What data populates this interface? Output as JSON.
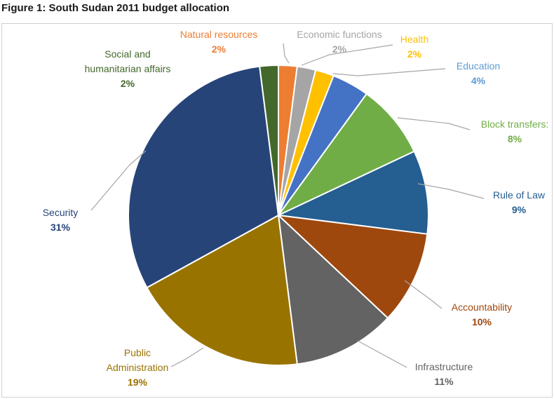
{
  "figure_title": "Figure 1: South Sudan 2011 budget allocation",
  "chart_data": {
    "type": "pie",
    "title": "",
    "legend": "none",
    "slices": [
      {
        "label": "Natural resources",
        "value": 2,
        "pct_label": "2%",
        "color": "#ed7d31",
        "label_color": "#ed7d31",
        "label_lines": [
          "Natural resources"
        ]
      },
      {
        "label": "Economic functions",
        "value": 2,
        "pct_label": "2%",
        "color": "#a5a5a5",
        "label_color": "#a5a5a5",
        "label_lines": [
          "Economic functions"
        ]
      },
      {
        "label": "Health",
        "value": 2,
        "pct_label": "2%",
        "color": "#ffc000",
        "label_color": "#ffc000",
        "label_lines": [
          "Health"
        ]
      },
      {
        "label": "Education",
        "value": 4,
        "pct_label": "4%",
        "color": "#4472c4",
        "label_color": "#5b9bd5",
        "label_lines": [
          "Education"
        ]
      },
      {
        "label": "Block transfers:",
        "value": 8,
        "pct_label": "8%",
        "color": "#70ad47",
        "label_color": "#70ad47",
        "label_lines": [
          "Block transfers:"
        ]
      },
      {
        "label": "Rule of Law",
        "value": 9,
        "pct_label": "9%",
        "color": "#255e91",
        "label_color": "#255e91",
        "label_lines": [
          "Rule of Law"
        ]
      },
      {
        "label": "Accountability",
        "value": 10,
        "pct_label": "10%",
        "color": "#9e480e",
        "label_color": "#9e480e",
        "label_lines": [
          "Accountability"
        ]
      },
      {
        "label": "Infrastructure",
        "value": 11,
        "pct_label": "11%",
        "color": "#636363",
        "label_color": "#636363",
        "label_lines": [
          "Infrastructure"
        ]
      },
      {
        "label": "Public Administration",
        "value": 19,
        "pct_label": "19%",
        "color": "#997300",
        "label_color": "#997300",
        "label_lines": [
          "Public",
          "Administration"
        ]
      },
      {
        "label": "Security",
        "value": 31,
        "pct_label": "31%",
        "color": "#264478",
        "label_color": "#264478",
        "label_lines": [
          "Security"
        ]
      },
      {
        "label": "Social and humanitarian affairs",
        "value": 2,
        "pct_label": "2%",
        "color": "#43682b",
        "label_color": "#43682b",
        "label_lines": [
          "Social and",
          "humanitarian affairs"
        ]
      }
    ]
  }
}
